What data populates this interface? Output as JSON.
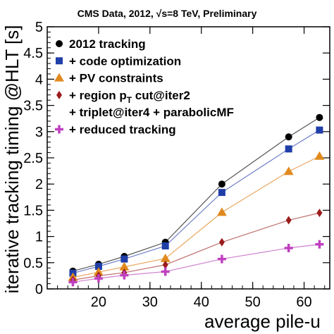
{
  "chart_data": {
    "type": "scatter",
    "title": "CMS Data, 2012, √s=8 TeV, Preliminary",
    "xlabel": "average pile-u",
    "ylabel": "iterative tracking timing @HLT [s]",
    "xlim": [
      10,
      65
    ],
    "ylim": [
      0,
      5
    ],
    "x_ticks": [
      "20",
      "30",
      "40",
      "50",
      "60"
    ],
    "y_ticks": [
      "0",
      "0.5",
      "1",
      "1.5",
      "2",
      "2.5",
      "3",
      "3.5",
      "4",
      "4.5",
      "5"
    ],
    "legend_position": "top-left",
    "series": [
      {
        "name": "2012 tracking",
        "color": "#000000",
        "line_color": "#555555",
        "marker": "circle",
        "x": [
          15,
          20,
          25,
          33,
          44,
          57,
          63
        ],
        "y": [
          0.34,
          0.47,
          0.62,
          0.89,
          2.0,
          2.9,
          3.27
        ]
      },
      {
        "name": "+ code optimization",
        "color": "#1f3ea8",
        "line_color": "#7080c8",
        "marker": "square",
        "x": [
          15,
          20,
          25,
          33,
          44,
          57,
          63
        ],
        "y": [
          0.3,
          0.43,
          0.57,
          0.82,
          1.84,
          2.67,
          3.03
        ]
      },
      {
        "name": "+ PV constraints",
        "color": "#e08a1e",
        "line_color": "#e8a860",
        "marker": "triangle",
        "x": [
          15,
          20,
          25,
          33,
          44,
          57,
          63
        ],
        "y": [
          0.22,
          0.32,
          0.42,
          0.58,
          1.46,
          2.24,
          2.53
        ]
      },
      {
        "name": "+ region p_T cut@iter2",
        "color": "#9b1c1c",
        "line_color": "#c07070",
        "marker": "diamond",
        "x": [
          15,
          20,
          25,
          33,
          44,
          57,
          63
        ],
        "y": [
          0.17,
          0.25,
          0.31,
          0.46,
          0.89,
          1.31,
          1.45
        ]
      },
      {
        "name": "+ triplet@iter4 + parabolicMF",
        "color": "#ffffff",
        "line_color": "#ffffff",
        "marker": "none",
        "x": [],
        "y": []
      },
      {
        "name": "+ reduced tracking",
        "color": "#c040c0",
        "line_color": "#d080d0",
        "marker": "plus",
        "x": [
          15,
          20,
          25,
          33,
          44,
          57,
          63
        ],
        "y": [
          0.13,
          0.2,
          0.26,
          0.33,
          0.57,
          0.78,
          0.85
        ]
      }
    ]
  }
}
